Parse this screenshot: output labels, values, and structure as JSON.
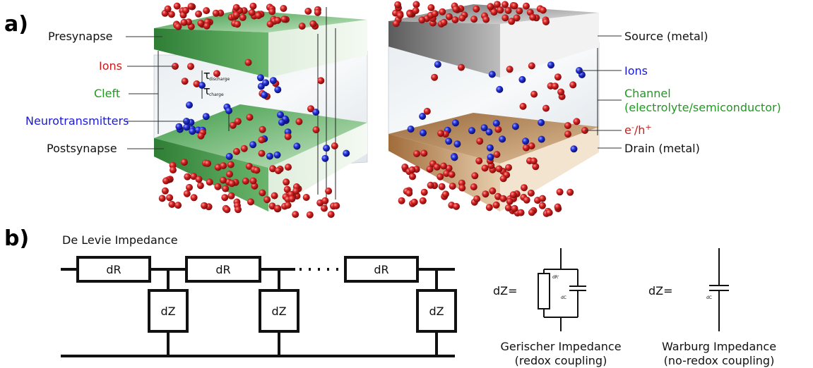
{
  "colors": {
    "ion_red": "#c81c1c",
    "nt_blue": "#1a1ad6",
    "green_text": "#1f9a1f",
    "synapse_green": "#3f9a44",
    "metal_gray": "#7c7c7c",
    "drain_brown": "#b7824e",
    "black": "#111111"
  },
  "panel_a": {
    "tag": "a)",
    "left_labels": {
      "presynapse": "Presynapse",
      "ions": "Ions",
      "cleft": "Cleft",
      "neurotransmitters": "Neurotransmitters",
      "postsynapse": "Postsynapse"
    },
    "tau": {
      "symbol": "τ",
      "discharge": "discharge",
      "charge": "charge"
    },
    "right_labels": {
      "source": "Source (metal)",
      "ions": "Ions",
      "channel_line1": "Channel",
      "channel_line2": "(electrolyte/semiconductor)",
      "carriers_base": "e",
      "carriers_sup1": "-",
      "carriers_mid": "/h",
      "carriers_sup2": "+",
      "drain": "Drain (metal)"
    }
  },
  "panel_b": {
    "tag": "b)",
    "title": "De Levie Impedance",
    "resistor_label": "dR",
    "impedance_label": "dZ",
    "gerischer": {
      "lhs": "dZ=",
      "r_label": "dR'",
      "c_label": "dC",
      "caption_line1": "Gerischer Impedance",
      "caption_line2": "(redox coupling)"
    },
    "warburg": {
      "lhs": "dZ=",
      "c_label": "dC",
      "caption_line1": "Warburg Impedance",
      "caption_line2": "(no-redox coupling)"
    }
  }
}
